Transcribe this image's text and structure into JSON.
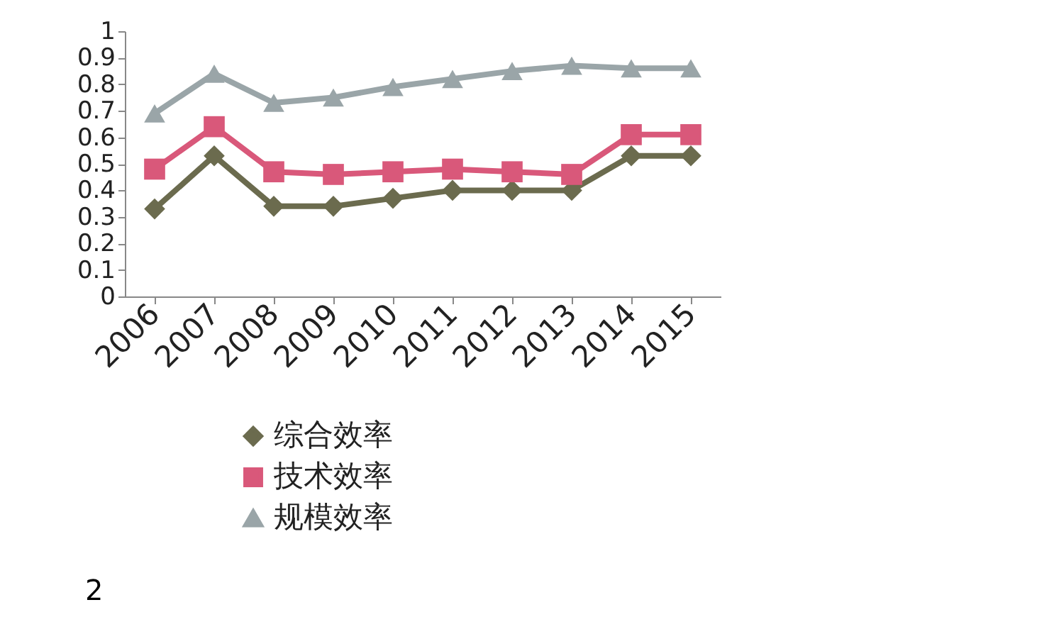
{
  "chart_data": {
    "type": "line",
    "categories": [
      "2006",
      "2007",
      "2008",
      "2009",
      "2010",
      "2011",
      "2012",
      "2013",
      "2014",
      "2015"
    ],
    "series": [
      {
        "name": "综合效率",
        "color": "#6b6b4e",
        "marker": "diamond",
        "values": [
          0.33,
          0.53,
          0.34,
          0.34,
          0.37,
          0.4,
          0.4,
          0.4,
          0.53,
          0.53
        ]
      },
      {
        "name": "技术效率",
        "color": "#d9587a",
        "marker": "square",
        "values": [
          0.48,
          0.64,
          0.47,
          0.46,
          0.47,
          0.48,
          0.47,
          0.46,
          0.61,
          0.61
        ]
      },
      {
        "name": "规模效率",
        "color": "#9aa5a8",
        "marker": "triangle",
        "values": [
          0.69,
          0.84,
          0.73,
          0.75,
          0.79,
          0.82,
          0.85,
          0.87,
          0.86,
          0.86
        ]
      }
    ],
    "ylim": [
      0,
      1
    ],
    "yticks": [
      0,
      0.1,
      0.2,
      0.3,
      0.4,
      0.5,
      0.6,
      0.7,
      0.8,
      0.9,
      1
    ],
    "legend": "bottom",
    "annotations": [
      "2"
    ]
  }
}
